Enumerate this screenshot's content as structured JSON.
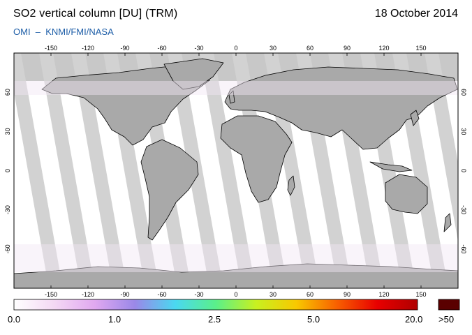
{
  "header": {
    "title": "SO2 vertical column [DU] (TRM)",
    "date": "18 October 2014",
    "subtitle": "OMI  –  KNMI/FMI/NASA"
  },
  "map": {
    "projection": "equirectangular",
    "lon_range": [
      -180,
      180
    ],
    "lat_range": [
      -90,
      90
    ],
    "lon_ticks": [
      "-150",
      "-120",
      "-90",
      "-60",
      "-30",
      "0",
      "30",
      "60",
      "90",
      "120",
      "150"
    ],
    "lat_ticks": [
      "60",
      "30",
      "0",
      "-30",
      "-60"
    ],
    "land_color": "#a9a9a9",
    "no_data_color": "#c8c8c8",
    "swath_gap_color": "#d2d2d2"
  },
  "colorbar": {
    "labels": [
      "0.0",
      "1.0",
      "2.5",
      "5.0",
      "20.0"
    ],
    "overflow_label": ">50",
    "overflow_color": "#5a0000",
    "stops": [
      "#ffffff",
      "#f4d8f4",
      "#e0a8f0",
      "#9a88e8",
      "#4ad8f0",
      "#5af08a",
      "#c8f020",
      "#f8c800",
      "#f86000",
      "#e80000",
      "#b00000"
    ]
  }
}
